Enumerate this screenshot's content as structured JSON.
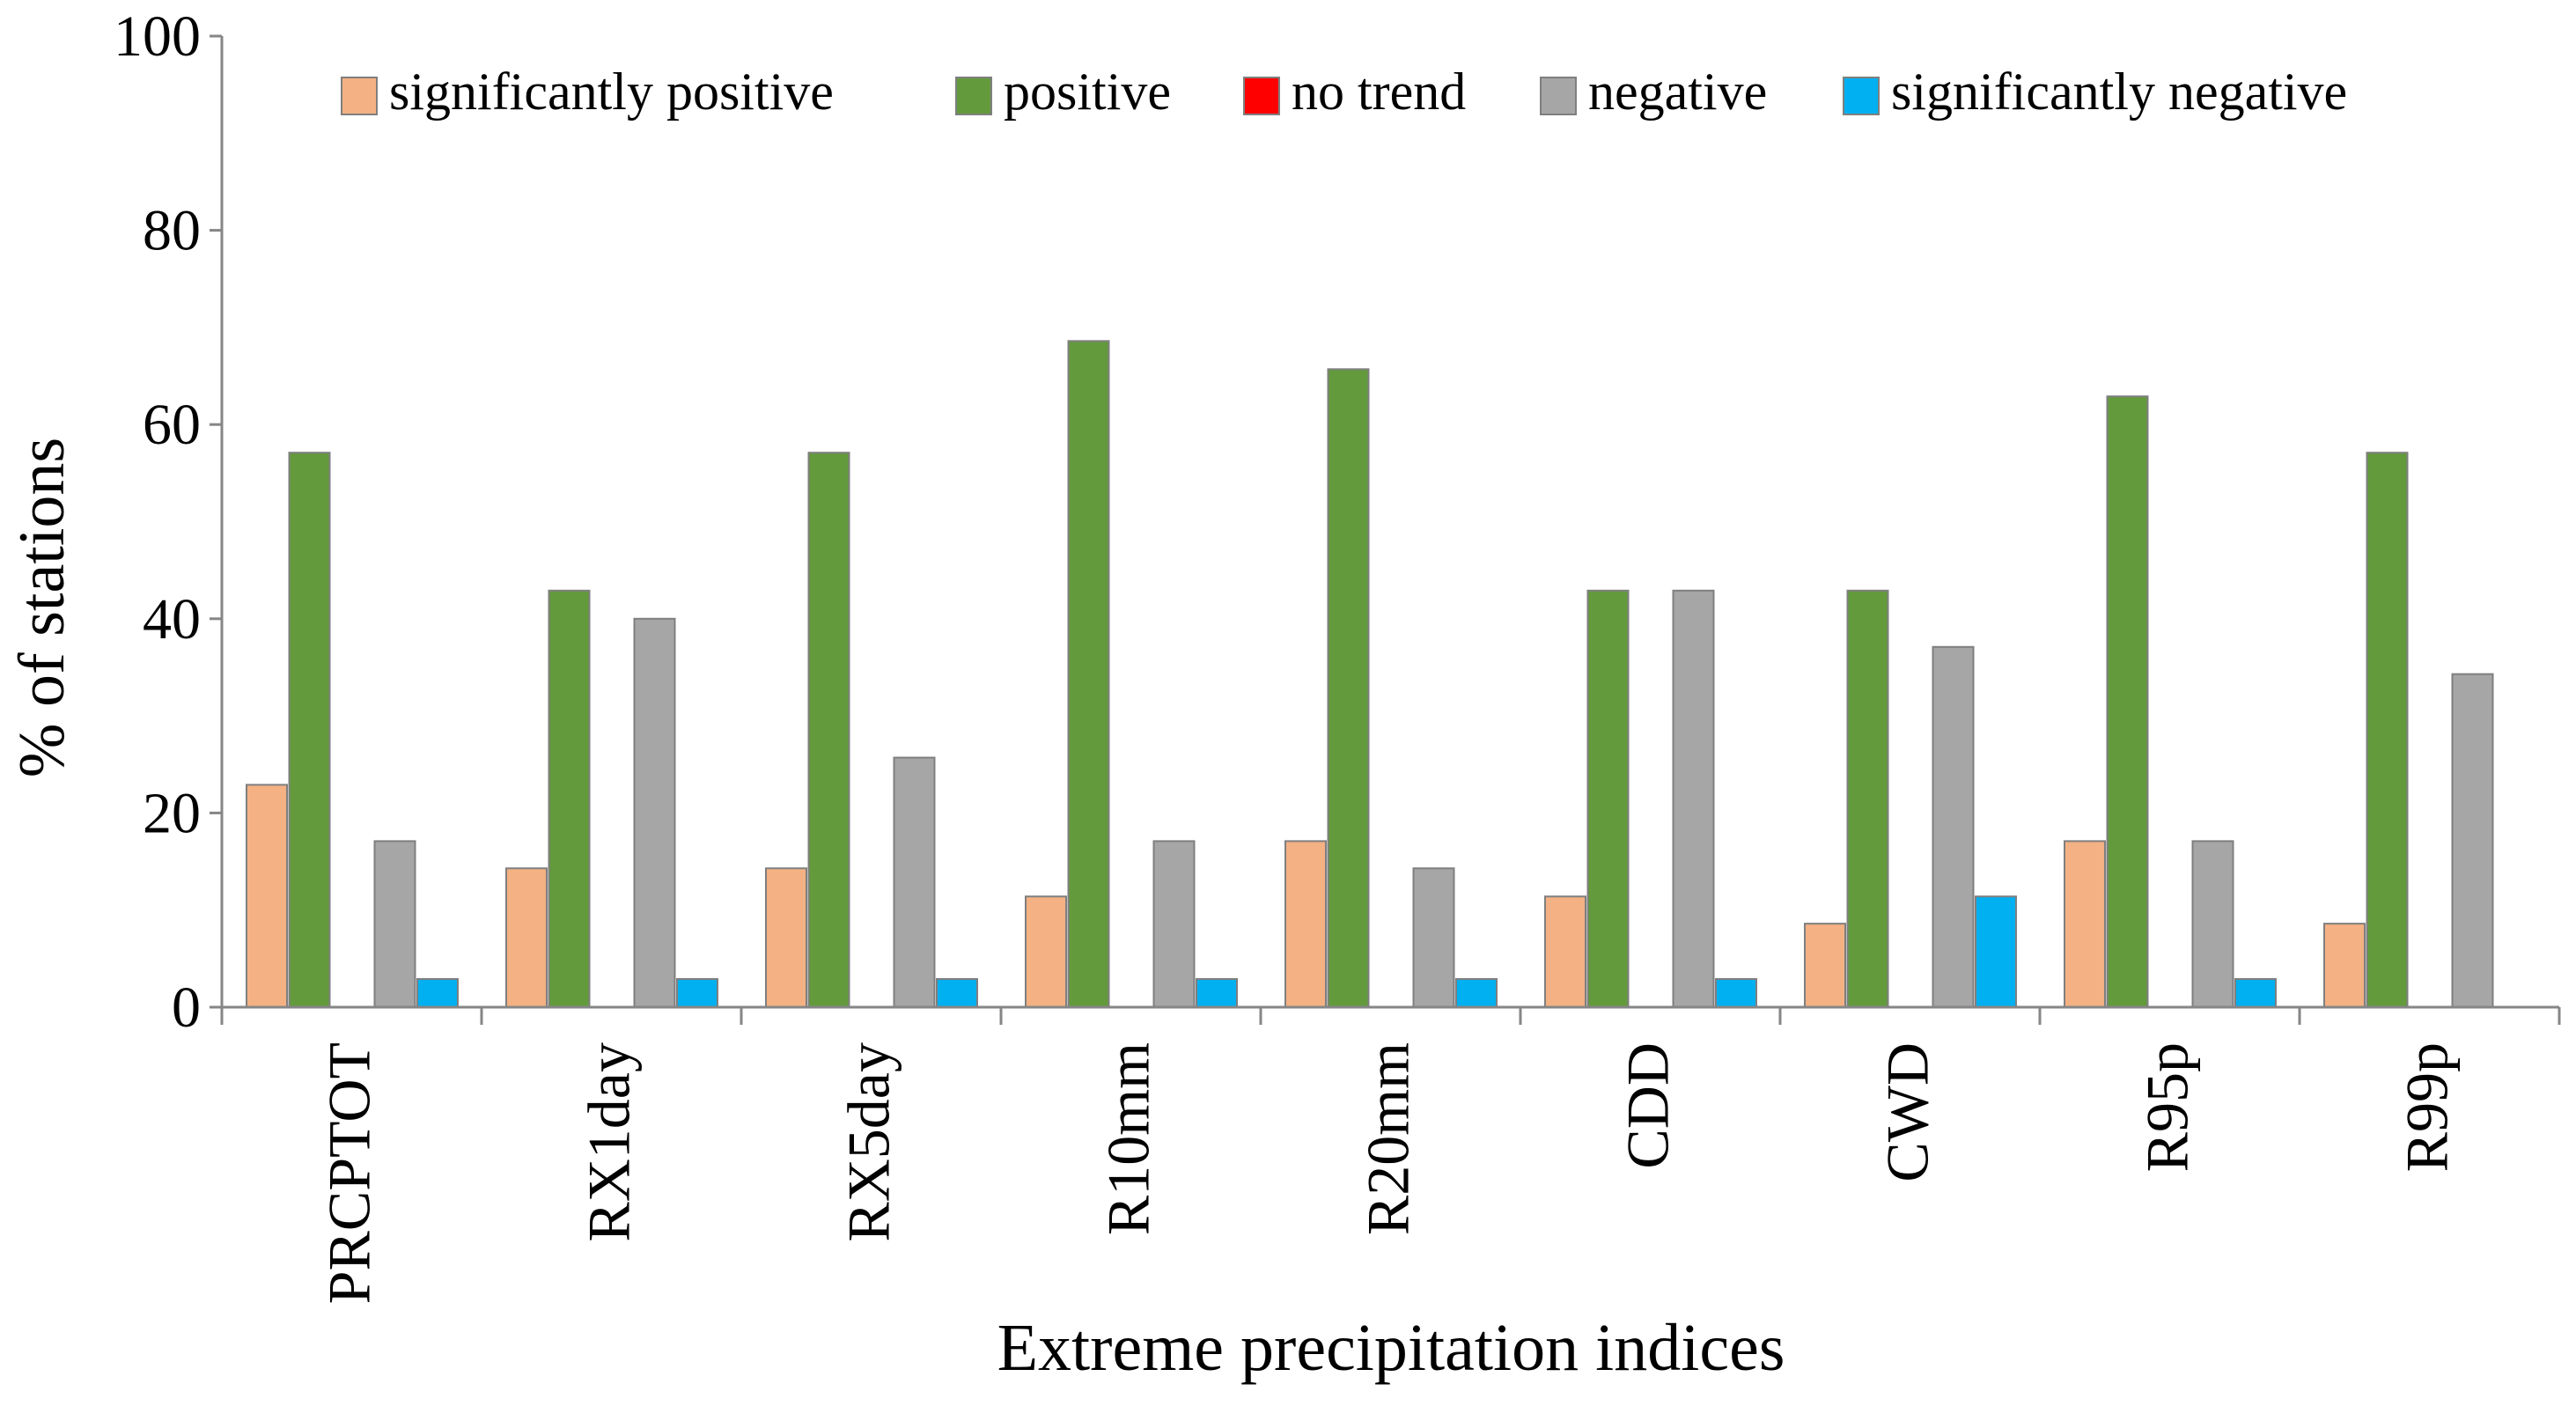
{
  "chart_data": {
    "type": "bar",
    "title": "",
    "xlabel": "Extreme precipitation indices",
    "ylabel": "% of stations",
    "ylim": [
      0,
      100
    ],
    "yticks": [
      "0",
      "20",
      "40",
      "60",
      "80",
      "100"
    ],
    "grid": false,
    "legend_position": "top",
    "categories": [
      "PRCPTOT",
      "RX1day",
      "RX5day",
      "R10mm",
      "R20mm",
      "CDD",
      "CWD",
      "R95p",
      "R99p"
    ],
    "series": [
      {
        "name": "significantly positive",
        "color": "#F4B183",
        "values": [
          22.9,
          14.3,
          14.3,
          11.4,
          17.1,
          11.4,
          8.6,
          17.1,
          8.6
        ]
      },
      {
        "name": "positive",
        "color": "#639A3C",
        "values": [
          57.1,
          42.9,
          57.1,
          68.6,
          65.7,
          42.9,
          42.9,
          62.9,
          57.1
        ]
      },
      {
        "name": "no trend",
        "color": "#FF0000",
        "values": [
          0,
          0,
          0,
          0,
          0,
          0,
          0,
          0,
          0
        ]
      },
      {
        "name": "negative",
        "color": "#A6A6A6",
        "values": [
          17.1,
          40.0,
          25.7,
          17.1,
          14.3,
          42.9,
          37.1,
          17.1,
          34.3
        ]
      },
      {
        "name": "significantly negative",
        "color": "#00B0F0",
        "values": [
          2.9,
          2.9,
          2.9,
          2.9,
          2.9,
          2.9,
          11.4,
          2.9,
          0
        ]
      }
    ]
  }
}
